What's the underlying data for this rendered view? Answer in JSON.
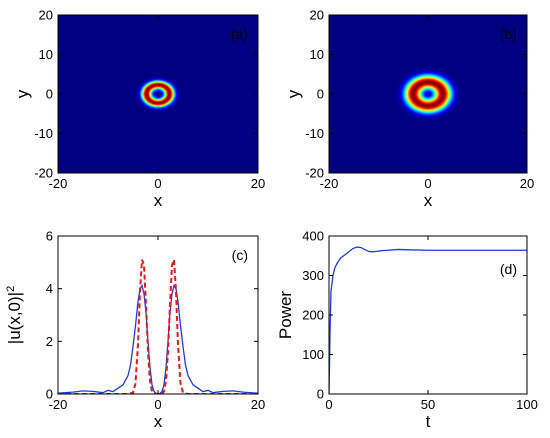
{
  "chart_data": [
    {
      "id": "a",
      "type": "heatmap",
      "panel_label": "(a)",
      "xlabel": "x",
      "ylabel": "y",
      "xlim": [
        -20,
        20
      ],
      "ylim": [
        -20,
        20
      ],
      "xticks": [
        -20,
        0,
        20
      ],
      "yticks": [
        -20,
        -10,
        0,
        10,
        20
      ],
      "ring": {
        "center": [
          0,
          0
        ],
        "peak_radius": 2.3,
        "width": 1.0
      },
      "colormap": "jet"
    },
    {
      "id": "b",
      "type": "heatmap",
      "panel_label": "(b)",
      "xlabel": "x",
      "ylabel": "y",
      "xlim": [
        -20,
        20
      ],
      "ylim": [
        -20,
        20
      ],
      "xticks": [
        -20,
        0,
        20
      ],
      "yticks": [
        -20,
        -10,
        0,
        10,
        20
      ],
      "ring": {
        "center": [
          0,
          0
        ],
        "peak_radius": 3.0,
        "width": 1.7
      },
      "colormap": "jet"
    },
    {
      "id": "c",
      "type": "line",
      "panel_label": "(c)",
      "xlabel": "x",
      "ylabel": "|u(x,0)|",
      "ylabel_sup": "2",
      "xlim": [
        -20,
        20
      ],
      "ylim": [
        0,
        6
      ],
      "xticks": [
        -20,
        0,
        20
      ],
      "yticks": [
        0,
        2,
        4,
        6
      ],
      "series": [
        {
          "style": "solid",
          "color": "#1f3bdb",
          "x": [
            -20,
            -17,
            -15,
            -13,
            -11,
            -10,
            -9,
            -8,
            -7,
            -6,
            -5.5,
            -5,
            -4.5,
            -4,
            -3.6,
            -3.2,
            -2.8,
            -2.4,
            -2,
            -1.6,
            -1.2,
            -0.8,
            -0.4,
            0,
            0.4,
            0.8,
            1.2,
            1.6,
            2,
            2.4,
            2.8,
            3.2,
            3.6,
            4,
            4.5,
            5,
            5.5,
            6,
            7,
            8,
            9,
            10,
            11,
            13,
            15,
            17,
            20
          ],
          "y": [
            0.03,
            0.07,
            0.12,
            0.1,
            0.05,
            0.14,
            0.09,
            0.22,
            0.35,
            0.7,
            1.1,
            1.8,
            2.6,
            3.5,
            4.0,
            4.12,
            3.8,
            3.1,
            2.0,
            1.0,
            0.35,
            0.1,
            0.02,
            0.0,
            0.02,
            0.1,
            0.35,
            1.0,
            2.0,
            3.1,
            3.8,
            4.12,
            4.0,
            3.5,
            2.6,
            1.8,
            1.1,
            0.7,
            0.35,
            0.22,
            0.09,
            0.14,
            0.05,
            0.1,
            0.12,
            0.07,
            0.03
          ]
        },
        {
          "style": "dashed",
          "color": "#e41a1c",
          "x": [
            -20,
            -6,
            -5,
            -4.5,
            -4,
            -3.6,
            -3.2,
            -2.8,
            -2.4,
            -2,
            -1.6,
            -1.2,
            -0.8,
            0,
            0.8,
            1.2,
            1.6,
            2,
            2.4,
            2.8,
            3.2,
            3.6,
            4,
            4.5,
            5,
            6,
            20
          ],
          "y": [
            0,
            0,
            0.05,
            0.4,
            1.9,
            3.9,
            5.1,
            4.9,
            3.4,
            1.6,
            0.5,
            0.1,
            0.01,
            0,
            0.01,
            0.1,
            0.5,
            1.6,
            3.4,
            4.9,
            5.1,
            3.9,
            1.9,
            0.4,
            0.05,
            0,
            0
          ]
        }
      ]
    },
    {
      "id": "d",
      "type": "line",
      "panel_label": "(d)",
      "xlabel": "t",
      "ylabel": "Power",
      "xlim": [
        0,
        100
      ],
      "ylim": [
        0,
        400
      ],
      "xticks": [
        0,
        50,
        100
      ],
      "yticks": [
        0,
        100,
        200,
        300,
        400
      ],
      "series": [
        {
          "style": "solid",
          "color": "#1f3bdb",
          "x": [
            0,
            0.5,
            1,
            2,
            3,
            4,
            5,
            6,
            8,
            10,
            12,
            14,
            16,
            18,
            20,
            22,
            24,
            27,
            30,
            35,
            40,
            50,
            60,
            70,
            80,
            90,
            100
          ],
          "y": [
            0,
            150,
            260,
            300,
            320,
            330,
            338,
            345,
            352,
            360,
            368,
            372,
            371,
            366,
            361,
            360,
            361,
            363,
            364,
            366,
            365,
            364,
            364,
            364,
            364,
            364,
            364
          ]
        }
      ]
    }
  ]
}
